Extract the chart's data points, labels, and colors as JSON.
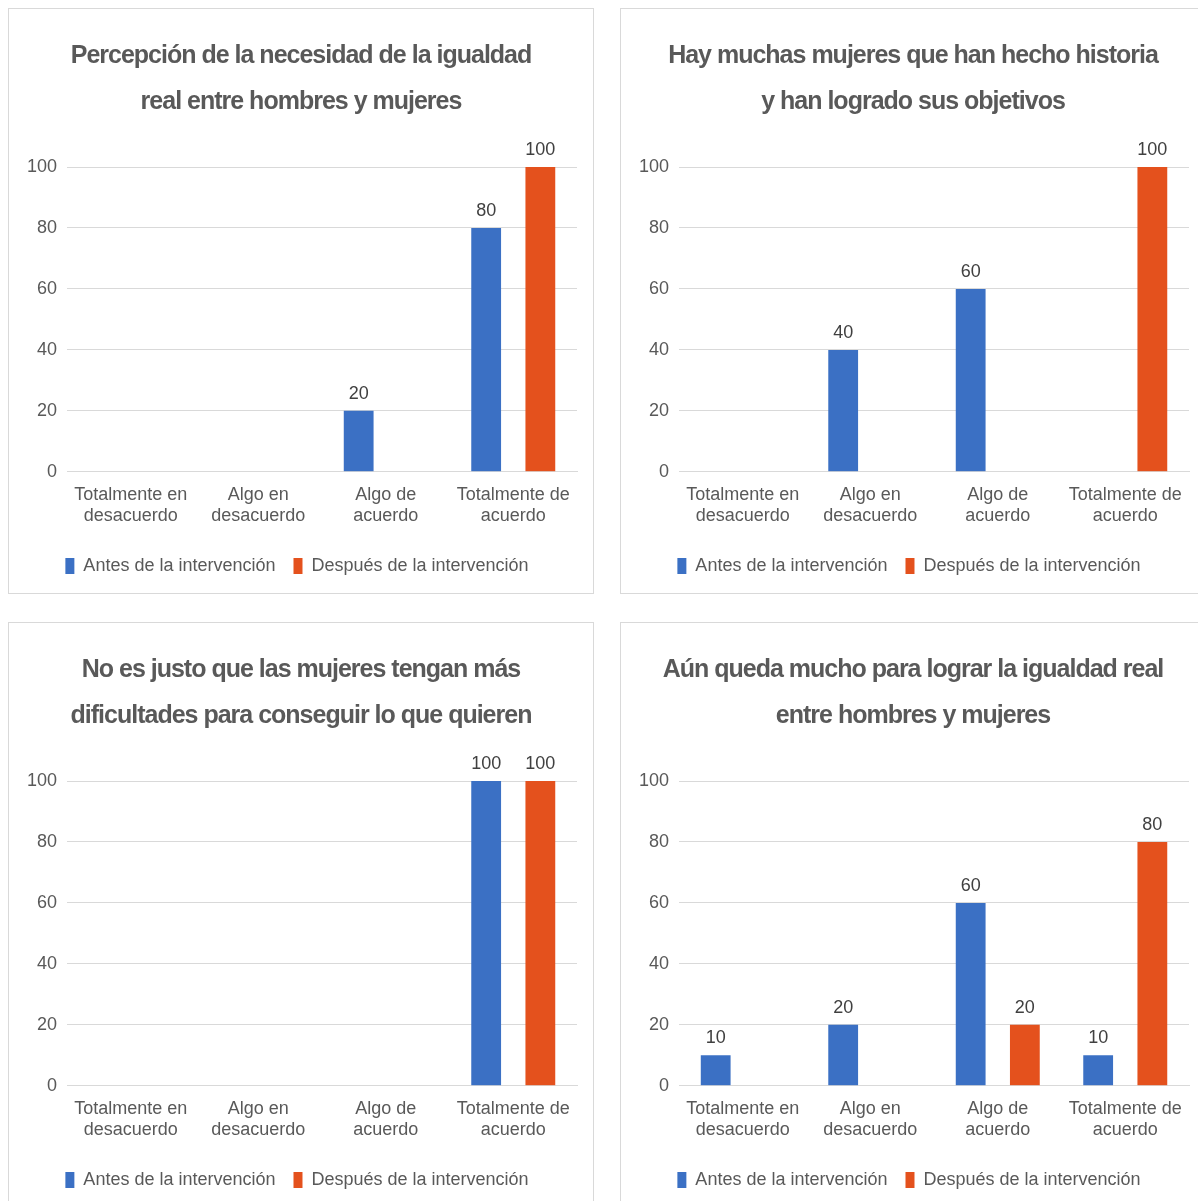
{
  "chart_data": [
    {
      "type": "bar",
      "title": "Percepción de la necesidad de la igualdad real entre hombres y mujeres",
      "categories": [
        "Totalmente en desacuerdo",
        "Algo en desacuerdo",
        "Algo de acuerdo",
        "Totalmente de acuerdo"
      ],
      "series": [
        {
          "name": "Antes de la intervención",
          "color": "#3b70c4",
          "values": [
            0,
            0,
            20,
            80
          ],
          "value_labels": [
            null,
            null,
            "20",
            "80"
          ]
        },
        {
          "name": "Después de la intervención",
          "color": "#e4511d",
          "values": [
            0,
            0,
            0,
            100
          ],
          "value_labels": [
            null,
            null,
            null,
            "100"
          ]
        }
      ],
      "ylim": [
        0,
        100
      ],
      "yticks": [
        0,
        20,
        40,
        60,
        80,
        100
      ],
      "grid": "y",
      "legend": "bottom"
    },
    {
      "type": "bar",
      "title": "Hay muchas mujeres que han hecho historia y han logrado sus objetivos",
      "categories": [
        "Totalmente en desacuerdo",
        "Algo en desacuerdo",
        "Algo de acuerdo",
        "Totalmente de acuerdo"
      ],
      "series": [
        {
          "name": "Antes de la intervención",
          "color": "#3b70c4",
          "values": [
            0,
            40,
            60,
            0
          ],
          "value_labels": [
            null,
            "40",
            "60",
            null
          ]
        },
        {
          "name": "Después de la intervención",
          "color": "#e4511d",
          "values": [
            0,
            0,
            0,
            100
          ],
          "value_labels": [
            null,
            null,
            null,
            "100"
          ]
        }
      ],
      "ylim": [
        0,
        100
      ],
      "yticks": [
        0,
        20,
        40,
        60,
        80,
        100
      ],
      "grid": "y",
      "legend": "bottom"
    },
    {
      "type": "bar",
      "title": "No es justo que las mujeres tengan más dificultades para conseguir lo que quieren",
      "categories": [
        "Totalmente en desacuerdo",
        "Algo en desacuerdo",
        "Algo de acuerdo",
        "Totalmente de acuerdo"
      ],
      "series": [
        {
          "name": "Antes de la intervención",
          "color": "#3b70c4",
          "values": [
            0,
            0,
            0,
            100
          ],
          "value_labels": [
            null,
            null,
            null,
            "100"
          ]
        },
        {
          "name": "Después de la intervención",
          "color": "#e4511d",
          "values": [
            0,
            0,
            0,
            100
          ],
          "value_labels": [
            null,
            null,
            null,
            "100"
          ]
        }
      ],
      "ylim": [
        0,
        100
      ],
      "yticks": [
        0,
        20,
        40,
        60,
        80,
        100
      ],
      "grid": "y",
      "legend": "bottom"
    },
    {
      "type": "bar",
      "title": "Aún queda mucho para lograr la igualdad real entre hombres y mujeres",
      "categories": [
        "Totalmente en desacuerdo",
        "Algo en desacuerdo",
        "Algo de acuerdo",
        "Totalmente de acuerdo"
      ],
      "series": [
        {
          "name": "Antes de la intervención",
          "color": "#3b70c4",
          "values": [
            10,
            20,
            60,
            10
          ],
          "value_labels": [
            "10",
            "20",
            "60",
            "10"
          ]
        },
        {
          "name": "Después de la intervención",
          "color": "#e4511d",
          "values": [
            0,
            0,
            20,
            80
          ],
          "value_labels": [
            null,
            null,
            "20",
            "80"
          ]
        }
      ],
      "ylim": [
        0,
        100
      ],
      "yticks": [
        0,
        20,
        40,
        60,
        80,
        100
      ],
      "grid": "y",
      "legend": "bottom"
    }
  ]
}
